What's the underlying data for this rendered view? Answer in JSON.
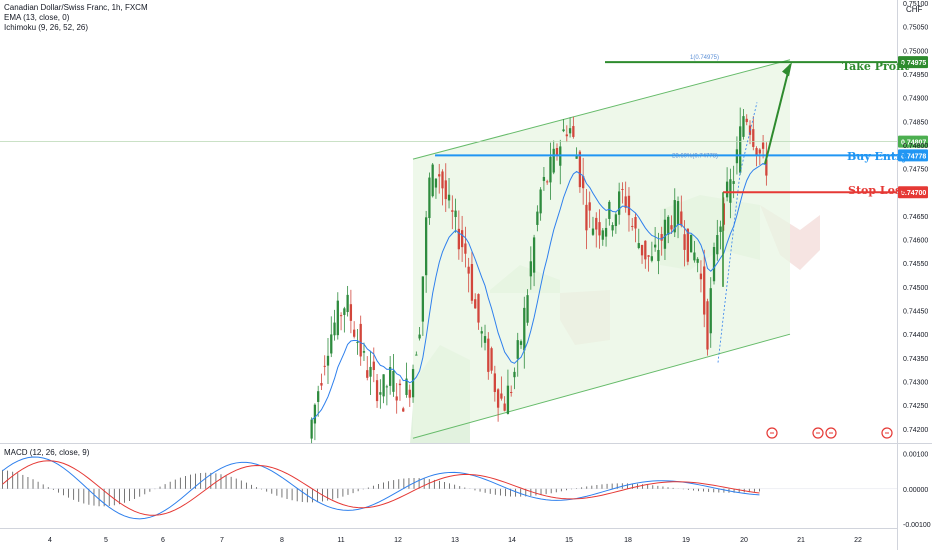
{
  "header": {
    "symbol_line": "Canadian Dollar/Swiss Franc, 1h, FXCM",
    "ema_line": "EMA (13, close, 0)",
    "ichimoku_line": "Ichimoku (9, 26, 52, 26)",
    "currency": "CHF"
  },
  "macd": {
    "label": "MACD (12, 26, close, 9)",
    "ticks": [
      "0.00100",
      "0.00000",
      "-0.00100"
    ],
    "ylim": [
      -0.00105,
      0.00115
    ]
  },
  "colors": {
    "bull": "#26a69a",
    "bull_candle": "#2e8b3e",
    "bear": "#d2463c",
    "take_profit": "#2e8b2e",
    "buy_entry": "#2196f3",
    "stop_loss": "#e53935",
    "channel_fill": "#e8f5e3",
    "ema": "#2f80ed",
    "macd_line": "#2f80ed",
    "signal_line": "#e53935"
  },
  "annotations": {
    "take_profit": {
      "label": "Take Profit",
      "price": 0.74975,
      "price_label": "0.74975"
    },
    "buy_entry": {
      "label": "Buy Entry",
      "price": 0.74778,
      "price_label": "0.74778"
    },
    "stop_loss": {
      "label": "Stop Loss",
      "price": 0.747,
      "price_label": "0.74700"
    },
    "last_price": {
      "price": 0.74807,
      "price_label": "0.74807"
    },
    "fib_top": "1(0.74975)",
    "fib_mid": "23.60%(0.74778)"
  },
  "chart_data": {
    "type": "candlestick",
    "title": "Canadian Dollar/Swiss Franc, 1h, FXCM",
    "ylim": [
      0.7417,
      0.751
    ],
    "y_ticks": [
      "0.75100",
      "0.75050",
      "0.75000",
      "0.74950",
      "0.74900",
      "0.74850",
      "0.74800",
      "0.74750",
      "0.74650",
      "0.74600",
      "0.74550",
      "0.74500",
      "0.74450",
      "0.74400",
      "0.74350",
      "0.74300",
      "0.74250",
      "0.74200"
    ],
    "x_ticks": [
      "4",
      "5",
      "6",
      "7",
      "8",
      "11",
      "12",
      "13",
      "14",
      "15",
      "18",
      "19",
      "20",
      "21",
      "22"
    ],
    "channel": {
      "lower_start": 0.7418,
      "lower_end": 0.744,
      "upper_start": 0.7477,
      "upper_end": 0.7498
    },
    "price_path": [
      0.7418,
      0.7428,
      0.7438,
      0.7443,
      0.7447,
      0.7441,
      0.7434,
      0.743,
      0.7428,
      0.7431,
      0.7426,
      0.743,
      0.7443,
      0.7472,
      0.7475,
      0.7467,
      0.7462,
      0.7457,
      0.7445,
      0.7437,
      0.743,
      0.7425,
      0.743,
      0.744,
      0.7455,
      0.747,
      0.7474,
      0.748,
      0.7485,
      0.7477,
      0.7465,
      0.7463,
      0.7464,
      0.7466,
      0.747,
      0.7462,
      0.7458,
      0.7455,
      0.746,
      0.7465,
      0.7465,
      0.7458,
      0.7456,
      0.744,
      0.7462,
      0.7468,
      0.7475,
      0.7488,
      0.7482,
      0.7476
    ]
  }
}
